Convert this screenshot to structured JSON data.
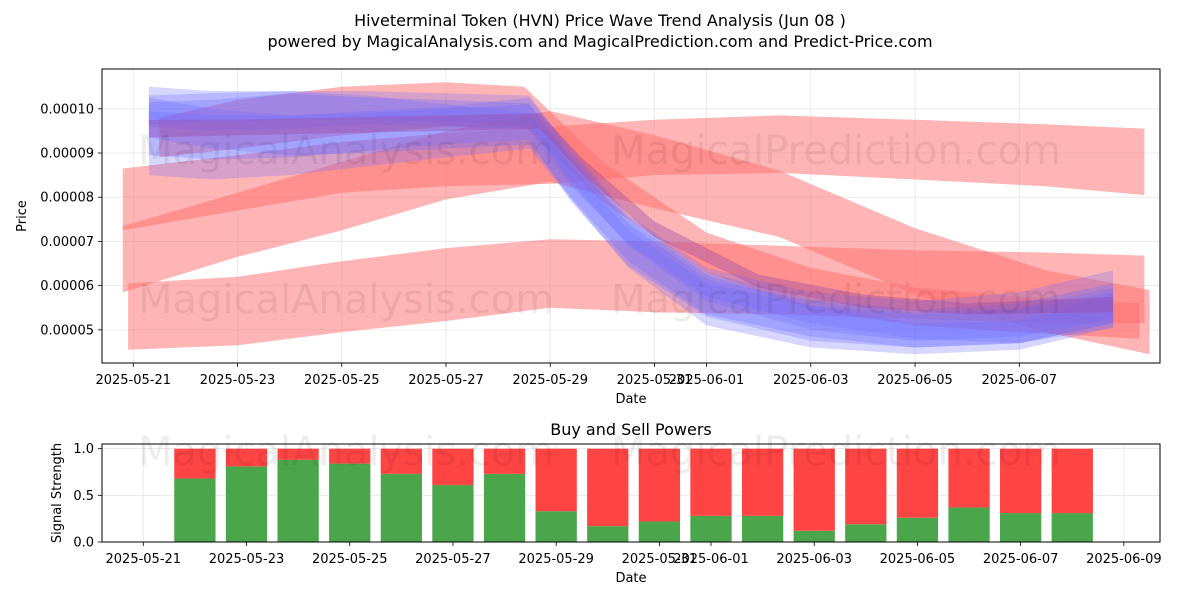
{
  "page": {
    "title": "Hiveterminal Token (HVN) Price Wave Trend Analysis (Jun 08 )",
    "subtitle": "powered by MagicalAnalysis.com and MagicalPrediction.com and Predict-Price.com"
  },
  "watermarks": [
    "MagicalAnalysis.com",
    "MagicalPrediction.com"
  ],
  "colors": {
    "sell": "#ff4444",
    "buy": "#4ba64b",
    "red_band": "#ff6b6b",
    "blue_band": "#6b6bff"
  },
  "chart_data": [
    {
      "type": "area",
      "title": "",
      "xlabel": "Date",
      "ylabel": "Price",
      "xlim": [
        -0.6,
        19.7
      ],
      "ylim": [
        4.25e-05,
        0.000109
      ],
      "x_ticks": [
        0,
        2,
        4,
        6,
        8,
        10,
        11,
        13,
        15,
        17
      ],
      "x_tick_labels": [
        "2025-05-21",
        "2025-05-23",
        "2025-05-25",
        "2025-05-27",
        "2025-05-29",
        "2025-05-31",
        "2025-06-01",
        "2025-06-03",
        "2025-06-05",
        "2025-06-07"
      ],
      "y_ticks": [
        5e-05,
        6e-05,
        7e-05,
        8e-05,
        9e-05,
        0.0001
      ],
      "y_tick_labels": [
        "0.00005",
        "0.00006",
        "0.00007",
        "0.00008",
        "0.00009",
        "0.00010"
      ],
      "grid": true,
      "series": [
        {
          "name": "red-1",
          "color": "red",
          "x": [
            -0.2,
            2,
            4,
            6,
            8,
            10,
            12.4,
            15,
            17.5,
            19.4
          ],
          "upper": [
            8.65e-05,
            8.95e-05,
            9.25e-05,
            9.45e-05,
            9.6e-05,
            9.75e-05,
            9.85e-05,
            9.75e-05,
            9.65e-05,
            9.55e-05
          ],
          "lower": [
            7.25e-05,
            7.7e-05,
            8.1e-05,
            8.25e-05,
            8.3e-05,
            8.5e-05,
            8.55e-05,
            8.4e-05,
            8.25e-05,
            8.05e-05
          ]
        },
        {
          "name": "red-2",
          "color": "red",
          "x": [
            -0.1,
            2,
            4,
            6,
            8,
            10,
            12.4,
            15,
            17.5,
            19.4
          ],
          "upper": [
            6.05e-05,
            6.2e-05,
            6.55e-05,
            6.85e-05,
            7.05e-05,
            7e-05,
            6.9e-05,
            6.8e-05,
            6.75e-05,
            6.68e-05
          ],
          "lower": [
            4.55e-05,
            4.65e-05,
            4.95e-05,
            5.2e-05,
            5.5e-05,
            5.4e-05,
            5.35e-05,
            5.25e-05,
            5.15e-05,
            5.15e-05
          ]
        },
        {
          "name": "red-3",
          "color": "red",
          "x": [
            -0.2,
            2,
            4,
            6,
            8,
            10,
            12.4,
            15,
            17.5,
            19.5
          ],
          "upper": [
            7.35e-05,
            8.1e-05,
            8.8e-05,
            9.5e-05,
            9.95e-05,
            9.4e-05,
            8.6e-05,
            7.3e-05,
            6.35e-05,
            5.9e-05
          ],
          "lower": [
            5.85e-05,
            6.65e-05,
            7.25e-05,
            7.95e-05,
            8.35e-05,
            7.75e-05,
            7.1e-05,
            5.8e-05,
            4.95e-05,
            4.45e-05
          ]
        },
        {
          "name": "red-4",
          "color": "red",
          "x": [
            0.5,
            2,
            4,
            6,
            7.5,
            9,
            11,
            13,
            15,
            17,
            19.3
          ],
          "upper": [
            9.8e-05,
            0.000102,
            0.000105,
            0.000106,
            0.000105,
            8.8e-05,
            7.2e-05,
            6.4e-05,
            5.95e-05,
            5.75e-05,
            5.6e-05
          ],
          "lower": [
            8.9e-05,
            9.1e-05,
            9.4e-05,
            9.6e-05,
            9.6e-05,
            7.9e-05,
            6.3e-05,
            5.45e-05,
            5.1e-05,
            4.95e-05,
            4.8e-05
          ]
        },
        {
          "name": "blue-1",
          "color": "blue",
          "x": [
            0.3,
            1.5,
            3,
            4.5,
            6,
            7.6,
            8.4,
            9.5,
            11,
            13,
            15,
            17,
            18.8
          ],
          "upper": [
            0.0001015,
            0.000102,
            0.0001035,
            0.0001025,
            0.000102,
            0.0001012,
            8.8e-05,
            7.5e-05,
            6.25e-05,
            5.55e-05,
            5.15e-05,
            5.2e-05,
            5.8e-05
          ],
          "lower": [
            9.6e-05,
            9.5e-05,
            9.55e-05,
            9.65e-05,
            9.6e-05,
            9.55e-05,
            8.25e-05,
            6.95e-05,
            5.75e-05,
            5.15e-05,
            4.8e-05,
            4.7e-05,
            5.15e-05
          ]
        },
        {
          "name": "blue-2",
          "color": "blue",
          "x": [
            0.3,
            1.5,
            3,
            4.5,
            6,
            7.6,
            8.4,
            9.5,
            11,
            13,
            15,
            17,
            18.8
          ],
          "upper": [
            0.000105,
            0.000104,
            0.000104,
            0.000103,
            0.000101,
            9.9e-05,
            8.7e-05,
            7.25e-05,
            6.05e-05,
            5.55e-05,
            5.35e-05,
            5.45e-05,
            5.85e-05
          ],
          "lower": [
            8.95e-05,
            8.85e-05,
            8.9e-05,
            9.05e-05,
            9.2e-05,
            9.3e-05,
            7.9e-05,
            6.45e-05,
            5.3e-05,
            4.75e-05,
            4.6e-05,
            4.7e-05,
            5.05e-05
          ]
        },
        {
          "name": "blue-3",
          "color": "blue",
          "x": [
            0.3,
            1.5,
            3,
            4.5,
            6,
            7.6,
            8.4,
            9.5,
            11,
            13,
            15,
            17,
            18.8
          ],
          "upper": [
            9.95e-05,
            9.85e-05,
            9.85e-05,
            9.95e-05,
            0.0001005,
            0.0001025,
            9.1e-05,
            7.6e-05,
            6.4e-05,
            5.85e-05,
            5.65e-05,
            5.85e-05,
            6.35e-05
          ],
          "lower": [
            8.5e-05,
            8.4e-05,
            8.5e-05,
            8.7e-05,
            8.9e-05,
            9.1e-05,
            7.95e-05,
            6.4e-05,
            5.1e-05,
            4.6e-05,
            4.45e-05,
            4.55e-05,
            5.05e-05
          ]
        },
        {
          "name": "blue-4",
          "color": "blue",
          "x": [
            0.3,
            1.5,
            3,
            4.5,
            6,
            7.6,
            8.4,
            9.5,
            11,
            13,
            15,
            17,
            18.8
          ],
          "upper": [
            0.0001025,
            0.0001,
            9.85e-05,
            9.9e-05,
            0.0001,
            0.000101,
            8.9e-05,
            7.4e-05,
            6.15e-05,
            5.65e-05,
            5.4e-05,
            5.5e-05,
            5.95e-05
          ],
          "lower": [
            9.35e-05,
            9.1e-05,
            8.95e-05,
            9e-05,
            9.1e-05,
            9.2e-05,
            8e-05,
            6.55e-05,
            5.35e-05,
            4.85e-05,
            4.6e-05,
            4.7e-05,
            5.15e-05
          ]
        },
        {
          "name": "blue-5",
          "color": "blue",
          "x": [
            0.3,
            1.5,
            3,
            4.5,
            6,
            7.6,
            8.4,
            9.5,
            11,
            13,
            15,
            17,
            18.8
          ],
          "upper": [
            0.000103,
            0.0001035,
            0.000104,
            0.000104,
            0.0001035,
            0.000103,
            9e-05,
            7.55e-05,
            6.3e-05,
            5.7e-05,
            5.45e-05,
            5.6e-05,
            6.05e-05
          ],
          "lower": [
            9.65e-05,
            9.7e-05,
            9.75e-05,
            9.75e-05,
            9.7e-05,
            9.65e-05,
            8.35e-05,
            6.9e-05,
            5.65e-05,
            5e-05,
            4.75e-05,
            4.85e-05,
            5.25e-05
          ]
        },
        {
          "name": "purple-core",
          "color": "purple",
          "x": [
            0.3,
            2,
            4,
            6,
            7.8,
            8.6,
            10,
            12,
            14,
            16,
            18.8
          ],
          "upper": [
            9.75e-05,
            9.75e-05,
            9.8e-05,
            9.85e-05,
            9.9e-05,
            8.9e-05,
            7.45e-05,
            6.25e-05,
            5.8e-05,
            5.6e-05,
            5.75e-05
          ],
          "lower": [
            9.35e-05,
            9.4e-05,
            9.45e-05,
            9.5e-05,
            9.55e-05,
            8.55e-05,
            7.1e-05,
            5.95e-05,
            5.5e-05,
            5.35e-05,
            5.4e-05
          ]
        }
      ]
    },
    {
      "type": "bar",
      "title": "Buy and Sell Powers",
      "xlabel": "Date",
      "ylabel": "Signal Strength",
      "xlim": [
        -0.8,
        19.7
      ],
      "ylim": [
        0,
        1.05
      ],
      "x_ticks": [
        0,
        2,
        4,
        6,
        8,
        10,
        11,
        13,
        15,
        17,
        19
      ],
      "x_tick_labels": [
        "2025-05-21",
        "2025-05-23",
        "2025-05-25",
        "2025-05-27",
        "2025-05-29",
        "2025-05-31",
        "2025-06-01",
        "2025-06-03",
        "2025-06-05",
        "2025-06-07",
        "2025-06-09"
      ],
      "y_ticks": [
        0,
        0.5,
        1.0
      ],
      "y_tick_labels": [
        "0.0",
        "0.5",
        "1.0"
      ],
      "grid": true,
      "categories": [
        "2025-05-22",
        "2025-05-23",
        "2025-05-24",
        "2025-05-25",
        "2025-05-26",
        "2025-05-27",
        "2025-05-28",
        "2025-05-29",
        "2025-05-30",
        "2025-05-31",
        "2025-06-01",
        "2025-06-02",
        "2025-06-03",
        "2025-06-04",
        "2025-06-05",
        "2025-06-06",
        "2025-06-07",
        "2025-06-08"
      ],
      "x": [
        1,
        2,
        3,
        4,
        5,
        6,
        7,
        8,
        9,
        10,
        11,
        12,
        13,
        14,
        15,
        16,
        17,
        18
      ],
      "series": [
        {
          "name": "Buy",
          "values": [
            0.68,
            0.81,
            0.88,
            0.84,
            0.73,
            0.61,
            0.73,
            0.33,
            0.17,
            0.22,
            0.28,
            0.28,
            0.12,
            0.19,
            0.26,
            0.37,
            0.31,
            0.31
          ]
        },
        {
          "name": "Sell",
          "values": [
            0.32,
            0.19,
            0.12,
            0.16,
            0.27,
            0.39,
            0.27,
            0.67,
            0.83,
            0.78,
            0.72,
            0.72,
            0.88,
            0.81,
            0.74,
            0.63,
            0.69,
            0.69
          ]
        }
      ]
    }
  ]
}
